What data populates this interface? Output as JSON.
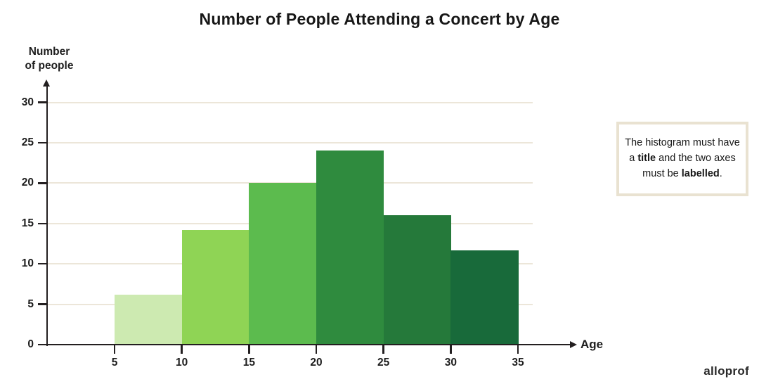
{
  "page": {
    "title": "Number of People Attending a Concert by Age",
    "watermark": "alloprof"
  },
  "axis_labels": {
    "y_line1": "Number",
    "y_line2": "of people",
    "x": "Age"
  },
  "chart_data": {
    "type": "bar",
    "subtype": "histogram",
    "title": "Number of People Attending a Concert by Age",
    "xlabel": "Age",
    "ylabel": "Number of people",
    "bin_edges": [
      5,
      10,
      15,
      20,
      25,
      30,
      35
    ],
    "values": [
      6.2,
      14.2,
      20,
      24,
      16,
      11.7
    ],
    "bar_colors": [
      "#cdeab1",
      "#8fd455",
      "#5cbb4e",
      "#2f8b3e",
      "#25793a",
      "#186a3a"
    ],
    "y_ticks": [
      0,
      5,
      10,
      15,
      20,
      25,
      30
    ],
    "x_ticks": [
      5,
      10,
      15,
      20,
      25,
      30,
      35
    ],
    "ylim": [
      0,
      32
    ],
    "grid": "horizontal",
    "gridline_color": "#ece6d9",
    "axis_color": "#231f20",
    "legend": "none"
  },
  "note": {
    "seg1": "The histogram must have a ",
    "bold1": "title",
    "seg2": " and the two axes must be ",
    "bold2": "labelled",
    "seg3": "."
  }
}
